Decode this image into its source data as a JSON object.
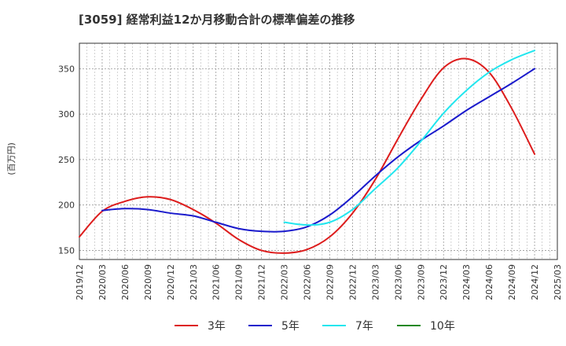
{
  "chart_data": {
    "type": "line",
    "title": "[3059]  経常利益12か月移動合計の標準偏差の推移",
    "ylabel": "(百万円)",
    "xlabel": "",
    "ylim": [
      140,
      378
    ],
    "yticks": [
      150,
      200,
      250,
      300,
      350
    ],
    "x_ticks": [
      "2019/12",
      "2020/03",
      "2020/06",
      "2020/09",
      "2020/12",
      "2021/03",
      "2021/06",
      "2021/09",
      "2021/12",
      "2022/03",
      "2022/06",
      "2022/09",
      "2022/12",
      "2023/03",
      "2023/06",
      "2023/09",
      "2023/12",
      "2024/03",
      "2024/06",
      "2024/09",
      "2024/12",
      "2025/03"
    ],
    "grid": true,
    "legend_position": "bottom",
    "series": [
      {
        "name": "3年",
        "color": "#dd1c1c",
        "x": [
          "2019/12",
          "2020/03",
          "2020/06",
          "2020/09",
          "2020/12",
          "2021/03",
          "2021/06",
          "2021/09",
          "2021/12",
          "2022/03",
          "2022/06",
          "2022/09",
          "2022/12",
          "2023/03",
          "2023/06",
          "2023/09",
          "2023/12",
          "2024/03",
          "2024/06",
          "2024/09",
          "2024/12"
        ],
        "values": [
          165,
          193,
          204,
          209,
          206,
          195,
          180,
          162,
          150,
          147,
          151,
          165,
          191,
          228,
          273,
          316,
          351,
          361,
          346,
          306,
          256
        ]
      },
      {
        "name": "5年",
        "color": "#1a1acc",
        "x": [
          "2020/03",
          "2020/06",
          "2020/09",
          "2020/12",
          "2021/03",
          "2021/06",
          "2021/09",
          "2021/12",
          "2022/03",
          "2022/06",
          "2022/09",
          "2022/12",
          "2023/03",
          "2023/06",
          "2023/09",
          "2023/12",
          "2024/03",
          "2024/06",
          "2024/09",
          "2024/12"
        ],
        "values": [
          194,
          196,
          195,
          191,
          188,
          181,
          174,
          171,
          171,
          176,
          189,
          209,
          232,
          253,
          271,
          287,
          304,
          319,
          334,
          350
        ]
      },
      {
        "name": "7年",
        "color": "#22e6ee",
        "x": [
          "2022/03",
          "2022/06",
          "2022/09",
          "2022/12",
          "2023/03",
          "2023/06",
          "2023/09",
          "2023/12",
          "2024/03",
          "2024/06",
          "2024/09",
          "2024/12"
        ],
        "values": [
          181,
          178,
          181,
          195,
          218,
          241,
          270,
          301,
          326,
          346,
          360,
          370
        ]
      },
      {
        "name": "10年",
        "color": "#228822",
        "x": [],
        "values": []
      }
    ]
  }
}
